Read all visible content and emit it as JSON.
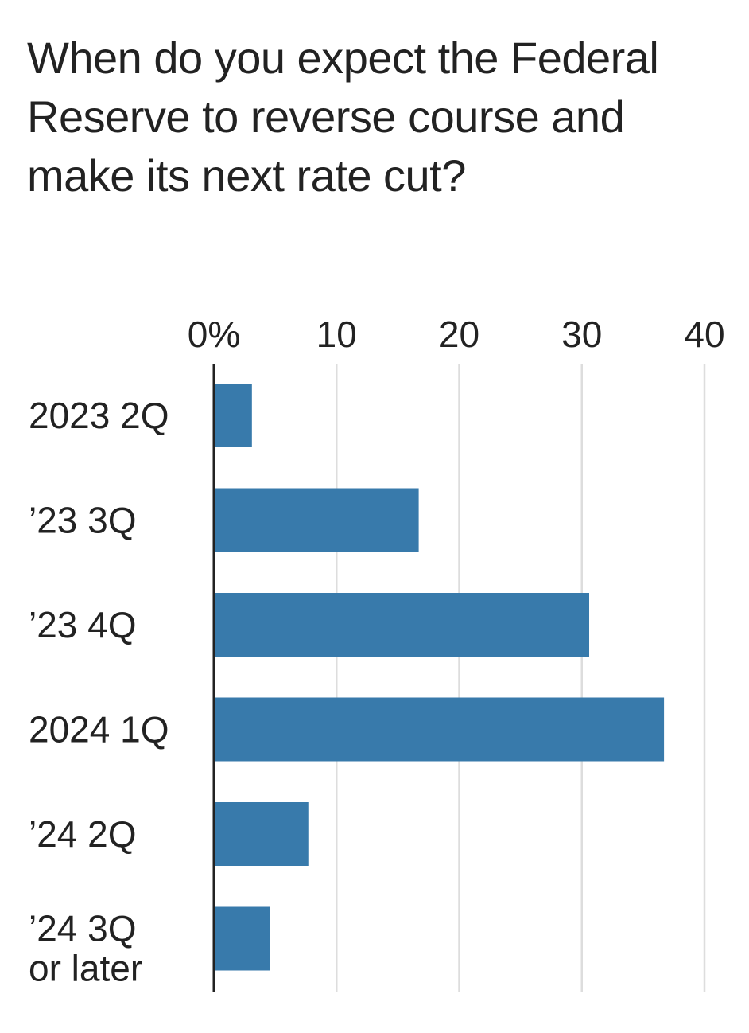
{
  "chart_data": {
    "type": "bar",
    "orientation": "horizontal",
    "title": "When do you expect the Federal Reserve to reverse course and make its next rate cut?",
    "categories": [
      [
        "2023 2Q"
      ],
      [
        "’23 3Q"
      ],
      [
        "’23 4Q"
      ],
      [
        "2024  1Q"
      ],
      [
        "’24 2Q"
      ],
      [
        "’24 3Q",
        "or later"
      ]
    ],
    "values": [
      3.1,
      16.7,
      30.6,
      36.7,
      7.7,
      4.6
    ],
    "xlim": [
      0,
      40
    ],
    "ticks": [
      0,
      10,
      20,
      30,
      40
    ],
    "tick_labels": [
      "0%",
      "10",
      "20",
      "30",
      "40"
    ],
    "xlabel": "",
    "ylabel": "",
    "grid": true,
    "bar_color": "#387aab",
    "grid_color": "#dddddd",
    "axis_color": "#222222"
  }
}
